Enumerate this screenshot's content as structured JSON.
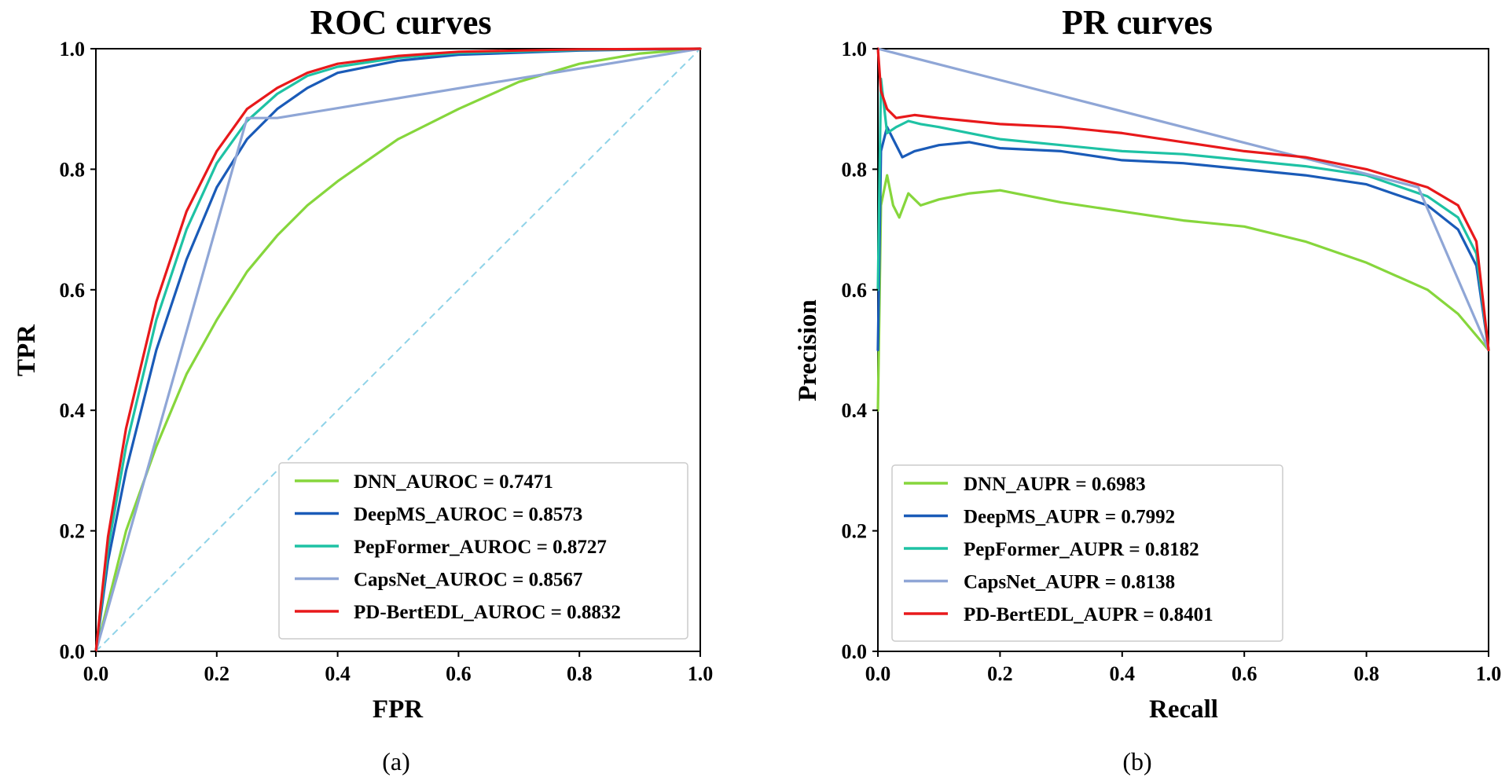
{
  "chart_data": [
    {
      "type": "line",
      "title": "ROC curves",
      "xlabel": "FPR",
      "ylabel": "TPR",
      "xlim": [
        0,
        1
      ],
      "ylim": [
        0,
        1
      ],
      "xticks": [
        "0.0",
        "0.2",
        "0.4",
        "0.6",
        "0.8",
        "1.0"
      ],
      "yticks": [
        "0.0",
        "0.2",
        "0.4",
        "0.6",
        "0.8",
        "1.0"
      ],
      "legend_position": "bottom-right",
      "panel_label": "(a)",
      "diagonal": {
        "x": [
          0,
          1
        ],
        "y": [
          0,
          1
        ],
        "color": "#8fd3e8",
        "dashed": true
      },
      "series": [
        {
          "name": "DNN_AUROC = 0.7471",
          "color": "#86d63c",
          "x": [
            0,
            0.02,
            0.05,
            0.1,
            0.15,
            0.2,
            0.25,
            0.3,
            0.35,
            0.4,
            0.5,
            0.6,
            0.7,
            0.8,
            0.9,
            1.0
          ],
          "y": [
            0,
            0.08,
            0.2,
            0.34,
            0.46,
            0.55,
            0.63,
            0.69,
            0.74,
            0.78,
            0.85,
            0.9,
            0.945,
            0.975,
            0.992,
            1.0
          ]
        },
        {
          "name": "DeepMS_AUROC = 0.8573",
          "color": "#1a5bb8",
          "x": [
            0,
            0.02,
            0.05,
            0.1,
            0.15,
            0.2,
            0.25,
            0.3,
            0.35,
            0.4,
            0.5,
            0.6,
            0.8,
            1.0
          ],
          "y": [
            0,
            0.15,
            0.3,
            0.5,
            0.65,
            0.77,
            0.85,
            0.9,
            0.935,
            0.96,
            0.98,
            0.99,
            0.997,
            1.0
          ]
        },
        {
          "name": "PepFormer_AUROC = 0.8727",
          "color": "#1ec2a4",
          "x": [
            0,
            0.02,
            0.05,
            0.1,
            0.15,
            0.2,
            0.25,
            0.3,
            0.35,
            0.4,
            0.5,
            0.6,
            0.8,
            1.0
          ],
          "y": [
            0,
            0.17,
            0.34,
            0.55,
            0.7,
            0.81,
            0.88,
            0.925,
            0.955,
            0.97,
            0.985,
            0.993,
            0.998,
            1.0
          ]
        },
        {
          "name": "CapsNet_AUROC = 0.8567",
          "color": "#8fa6d6",
          "x": [
            0,
            0.25,
            0.3,
            1.0
          ],
          "y": [
            0,
            0.885,
            0.885,
            1.0
          ]
        },
        {
          "name": "PD-BertEDL_AUROC = 0.8832",
          "color": "#e8191b",
          "x": [
            0,
            0.02,
            0.05,
            0.1,
            0.15,
            0.2,
            0.25,
            0.3,
            0.35,
            0.4,
            0.5,
            0.6,
            0.8,
            1.0
          ],
          "y": [
            0,
            0.19,
            0.37,
            0.58,
            0.73,
            0.83,
            0.9,
            0.935,
            0.96,
            0.975,
            0.988,
            0.995,
            0.999,
            1.0
          ]
        }
      ]
    },
    {
      "type": "line",
      "title": "PR curves",
      "xlabel": "Recall",
      "ylabel": "Precision",
      "xlim": [
        0,
        1
      ],
      "ylim": [
        0,
        1
      ],
      "xticks": [
        "0.0",
        "0.2",
        "0.4",
        "0.6",
        "0.8",
        "1.0"
      ],
      "yticks": [
        "0.0",
        "0.2",
        "0.4",
        "0.6",
        "0.8",
        "1.0"
      ],
      "legend_position": "bottom-left",
      "panel_label": "(b)",
      "series": [
        {
          "name": "DNN_AUPR = 0.6983",
          "color": "#86d63c",
          "x": [
            0,
            0.005,
            0.015,
            0.025,
            0.035,
            0.05,
            0.07,
            0.1,
            0.15,
            0.2,
            0.3,
            0.4,
            0.5,
            0.6,
            0.7,
            0.8,
            0.9,
            0.95,
            1.0
          ],
          "y": [
            0.4,
            0.74,
            0.79,
            0.74,
            0.72,
            0.76,
            0.74,
            0.75,
            0.76,
            0.765,
            0.745,
            0.73,
            0.715,
            0.705,
            0.68,
            0.645,
            0.6,
            0.56,
            0.5
          ]
        },
        {
          "name": "DeepMS_AUPR = 0.7992",
          "color": "#1a5bb8",
          "x": [
            0,
            0.005,
            0.015,
            0.025,
            0.04,
            0.06,
            0.1,
            0.15,
            0.2,
            0.3,
            0.4,
            0.5,
            0.6,
            0.7,
            0.8,
            0.9,
            0.95,
            0.98,
            1.0
          ],
          "y": [
            0.5,
            0.83,
            0.87,
            0.85,
            0.82,
            0.83,
            0.84,
            0.845,
            0.835,
            0.83,
            0.815,
            0.81,
            0.8,
            0.79,
            0.775,
            0.74,
            0.7,
            0.64,
            0.5
          ]
        },
        {
          "name": "PepFormer_AUPR = 0.8182",
          "color": "#1ec2a4",
          "x": [
            0,
            0.005,
            0.015,
            0.03,
            0.05,
            0.07,
            0.1,
            0.15,
            0.2,
            0.3,
            0.4,
            0.5,
            0.6,
            0.7,
            0.8,
            0.9,
            0.95,
            0.98,
            1.0
          ],
          "y": [
            0.6,
            0.95,
            0.86,
            0.87,
            0.88,
            0.875,
            0.87,
            0.86,
            0.85,
            0.84,
            0.83,
            0.825,
            0.815,
            0.805,
            0.79,
            0.755,
            0.72,
            0.66,
            0.5
          ]
        },
        {
          "name": "CapsNet_AUPR = 0.8138",
          "color": "#8fa6d6",
          "x": [
            0,
            0.885,
            1.0
          ],
          "y": [
            1.0,
            0.77,
            0.5
          ]
        },
        {
          "name": "PD-BertEDL_AUPR = 0.8401",
          "color": "#e8191b",
          "x": [
            0,
            0.005,
            0.015,
            0.03,
            0.06,
            0.1,
            0.15,
            0.2,
            0.3,
            0.4,
            0.5,
            0.6,
            0.7,
            0.8,
            0.9,
            0.95,
            0.98,
            1.0
          ],
          "y": [
            1.0,
            0.93,
            0.9,
            0.885,
            0.89,
            0.885,
            0.88,
            0.875,
            0.87,
            0.86,
            0.845,
            0.83,
            0.82,
            0.8,
            0.77,
            0.74,
            0.68,
            0.5
          ]
        }
      ]
    }
  ]
}
